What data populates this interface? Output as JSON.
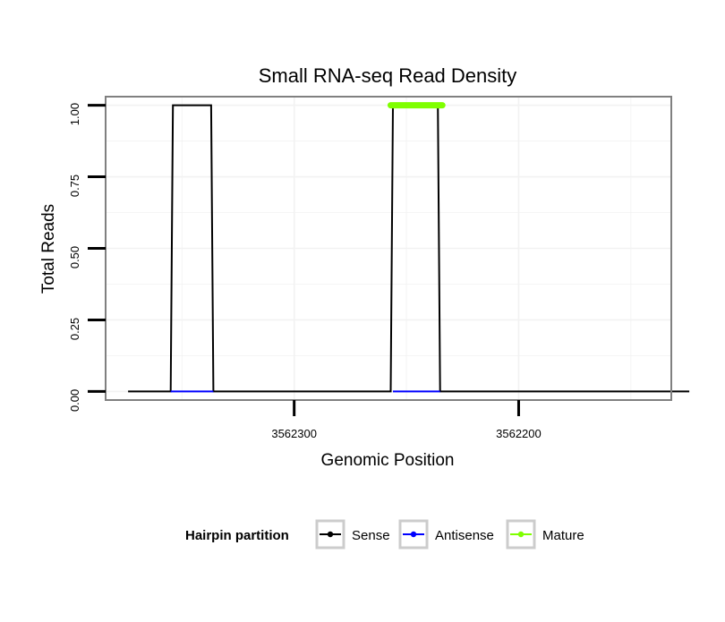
{
  "chart_data": {
    "type": "line",
    "title": "Small RNA-seq Read Density",
    "xlabel": "Genomic Position",
    "ylabel": "Total Reads",
    "x_reversed": true,
    "xlim": [
      3562384,
      3562132
    ],
    "ylim": [
      -0.03,
      1.03
    ],
    "x_ticks": [
      3562300,
      3562200
    ],
    "x_tick_labels": [
      "3562300",
      "3562200"
    ],
    "y_ticks": [
      0,
      0.25,
      0.5,
      0.75,
      1.0
    ],
    "y_tick_labels": [
      "0.00",
      "0.25",
      "0.50",
      "0.75",
      "1.00"
    ],
    "grid": true,
    "legend": {
      "position": "bottom",
      "title": "Hairpin partition",
      "entries": [
        {
          "label": "Sense",
          "color": "#000000"
        },
        {
          "label": "Antisense",
          "color": "#0000ff"
        },
        {
          "label": "Mature",
          "color": "#7fff00"
        }
      ]
    },
    "series": [
      {
        "name": "Sense",
        "color": "#000000",
        "x": [
          3562374,
          3562355,
          3562354,
          3562337,
          3562336,
          3562257,
          3562256,
          3562236,
          3562235,
          3562124
        ],
        "y": [
          0,
          0,
          1,
          1,
          0,
          0,
          1,
          1,
          0,
          0
        ]
      },
      {
        "name": "Antisense",
        "color": "#0000ff",
        "x": [
          3562355,
          3562336,
          3562256,
          3562235
        ],
        "y": [
          0,
          0,
          0,
          0
        ],
        "segments": [
          [
            0,
            1
          ],
          [
            2,
            3
          ]
        ]
      },
      {
        "name": "Mature",
        "color": "#7fff00",
        "x": [
          3562257,
          3562234
        ],
        "y": [
          1,
          1
        ]
      }
    ]
  },
  "colors": {
    "panel_border": "#808080",
    "grid": "#f2f2f2",
    "sense": "#000000",
    "antisense": "#0000ff",
    "mature": "#7fff00"
  }
}
